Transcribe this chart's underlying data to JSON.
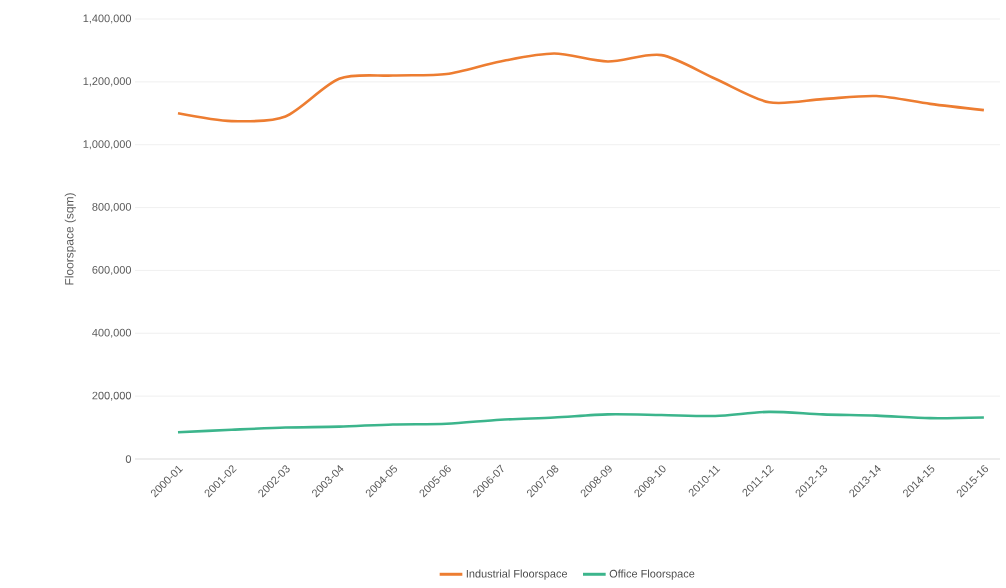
{
  "chart_data": {
    "type": "line",
    "ylabel": "Floorspace (sqm)",
    "categories": [
      "2000-01",
      "2001-02",
      "2002-03",
      "2003-04",
      "2004-05",
      "2005-06",
      "2006-07",
      "2007-08",
      "2008-09",
      "2009-10",
      "2010-11",
      "2011-12",
      "2012-13",
      "2013-14",
      "2014-15",
      "2015-16"
    ],
    "series": [
      {
        "name": "Industrial Floorspace",
        "color": "#ed7d31",
        "values": [
          1100000,
          1075000,
          1090000,
          1210000,
          1220000,
          1225000,
          1265000,
          1290000,
          1265000,
          1285000,
          1210000,
          1135000,
          1145000,
          1155000,
          1130000,
          1110000
        ]
      },
      {
        "name": "Office Floorspace",
        "color": "#3cb58c",
        "values": [
          85000,
          93000,
          100000,
          103000,
          110000,
          112000,
          125000,
          132000,
          142000,
          140000,
          137000,
          150000,
          142000,
          138000,
          130000,
          132000
        ]
      }
    ],
    "ylim": [
      0,
      1400000
    ],
    "yticks": [
      0,
      {
        "value": 200000,
        "label": "200,000"
      },
      {
        "value": 400000,
        "label": "400,000"
      },
      {
        "value": 600000,
        "label": "600,000"
      },
      {
        "value": 800000,
        "label": "800,000"
      },
      {
        "value": 1000000,
        "label": "1,000,000"
      },
      {
        "value": 1200000,
        "label": "1,200,000"
      },
      {
        "value": 1400000,
        "label": "1,400,000"
      }
    ],
    "grid": "y",
    "legend": "bottom"
  }
}
